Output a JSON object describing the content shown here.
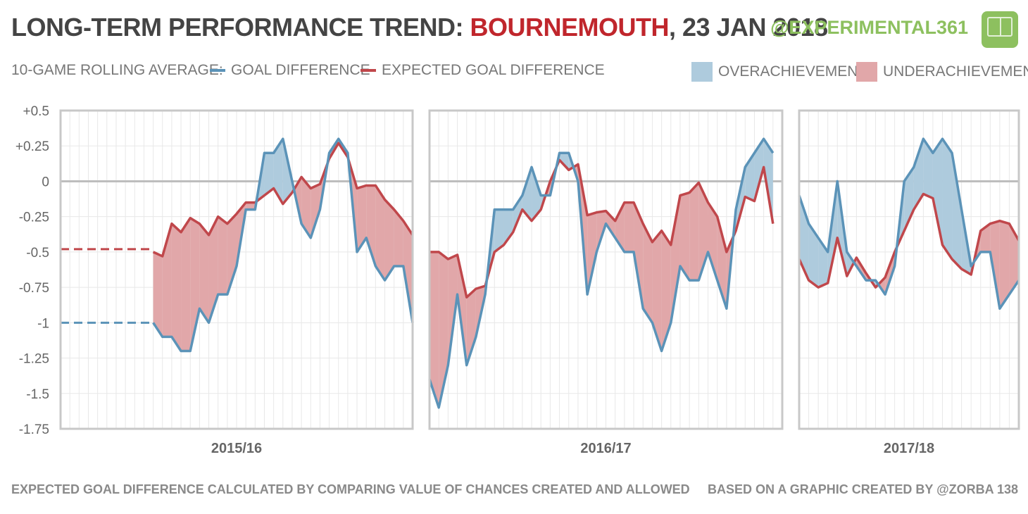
{
  "header": {
    "title_prefix": "LONG-TERM PERFORMANCE TREND: ",
    "team": "BOURNEMOUTH",
    "title_suffix": ", 23 JAN 2018",
    "handle": "@EXPERIMENTAL361",
    "logo_icon": "pitch-logo-icon"
  },
  "legend": {
    "label": "10-GAME ROLLING  AVERAGE:",
    "gd": "GOAL DIFFERENCE",
    "xgd": "EXPECTED GOAL DIFFERENCE",
    "over": "OVERACHIEVEMENT",
    "under": "UNDERACHIEVEMENT"
  },
  "colors": {
    "gd": "#5b93b8",
    "xgd": "#c0474b",
    "over_fill": "#aecbdd",
    "under_fill": "#e1a7a9",
    "axis": "#c8c8c8",
    "grid": "#e8e8e8",
    "zero": "#bdbdbd"
  },
  "footer": {
    "left": "EXPECTED GOAL DIFFERENCE CALCULATED BY COMPARING VALUE OF CHANCES CREATED AND ALLOWED",
    "right": "BASED ON A GRAPHIC CREATED BY @ZORBA 138"
  },
  "chart_data": {
    "type": "line",
    "ylim": [
      -1.75,
      0.5
    ],
    "yticks": [
      0.5,
      0.25,
      0,
      -0.25,
      -0.5,
      -0.75,
      -1,
      -1.25,
      -1.5,
      -1.75
    ],
    "ytick_labels": [
      "+0.5",
      "+0.25",
      "0",
      "-0.25",
      "-0.5",
      "-0.75",
      "-1",
      "-1.25",
      "-1.5",
      "-1.75"
    ],
    "series": [
      {
        "name": "GOAL DIFFERENCE"
      },
      {
        "name": "EXPECTED GOAL DIFFERENCE"
      }
    ],
    "seasons": [
      {
        "label": "2015/16",
        "games": 38,
        "start_game": 10,
        "baseline_gd": -1.0,
        "baseline_xgd": -0.48,
        "gd": [
          -1.0,
          -1.1,
          -1.1,
          -1.2,
          -1.2,
          -0.9,
          -1.0,
          -0.8,
          -0.8,
          -0.6,
          -0.2,
          -0.2,
          0.2,
          0.2,
          0.3,
          0.0,
          -0.3,
          -0.4,
          -0.2,
          0.2,
          0.3,
          0.2,
          -0.5,
          -0.4,
          -0.6,
          -0.7,
          -0.6,
          -0.6,
          -1.0
        ],
        "xgd": [
          -0.5,
          -0.53,
          -0.3,
          -0.36,
          -0.26,
          -0.3,
          -0.38,
          -0.25,
          -0.3,
          -0.23,
          -0.15,
          -0.15,
          -0.1,
          -0.05,
          -0.16,
          -0.08,
          0.03,
          -0.05,
          -0.02,
          0.16,
          0.27,
          0.17,
          -0.05,
          -0.03,
          -0.03,
          -0.13,
          -0.2,
          -0.28,
          -0.38
        ]
      },
      {
        "label": "2016/17",
        "games": 38,
        "start_game": 0,
        "gd": [
          -1.4,
          -1.6,
          -1.3,
          -0.8,
          -1.3,
          -1.1,
          -0.8,
          -0.2,
          -0.2,
          -0.2,
          -0.1,
          0.1,
          -0.1,
          -0.1,
          0.2,
          0.2,
          0.0,
          -0.8,
          -0.5,
          -0.3,
          -0.4,
          -0.5,
          -0.5,
          -0.9,
          -1.0,
          -1.2,
          -1.0,
          -0.6,
          -0.7,
          -0.7,
          -0.5,
          -0.7,
          -0.9,
          -0.2,
          0.1,
          0.2,
          0.3,
          0.2
        ],
        "xgd": [
          -0.5,
          -0.5,
          -0.55,
          -0.52,
          -0.82,
          -0.76,
          -0.74,
          -0.5,
          -0.45,
          -0.36,
          -0.2,
          -0.28,
          -0.2,
          0.0,
          0.15,
          0.08,
          0.12,
          -0.24,
          -0.22,
          -0.21,
          -0.28,
          -0.15,
          -0.15,
          -0.3,
          -0.43,
          -0.35,
          -0.45,
          -0.1,
          -0.08,
          -0.01,
          -0.15,
          -0.25,
          -0.5,
          -0.35,
          -0.11,
          -0.14,
          0.1,
          -0.3
        ]
      },
      {
        "label": "2017/18",
        "games": 23,
        "start_game": 0,
        "gd": [
          -0.1,
          -0.3,
          -0.4,
          -0.5,
          0.0,
          -0.5,
          -0.6,
          -0.7,
          -0.7,
          -0.8,
          -0.6,
          0.0,
          0.1,
          0.3,
          0.2,
          0.3,
          0.2,
          -0.2,
          -0.6,
          -0.5,
          -0.5,
          -0.9,
          -0.8,
          -0.7
        ],
        "xgd": [
          -0.55,
          -0.7,
          -0.75,
          -0.72,
          -0.4,
          -0.67,
          -0.54,
          -0.65,
          -0.75,
          -0.68,
          -0.5,
          -0.35,
          -0.2,
          -0.09,
          -0.12,
          -0.45,
          -0.55,
          -0.62,
          -0.66,
          -0.35,
          -0.3,
          -0.28,
          -0.3,
          -0.42
        ]
      }
    ]
  }
}
